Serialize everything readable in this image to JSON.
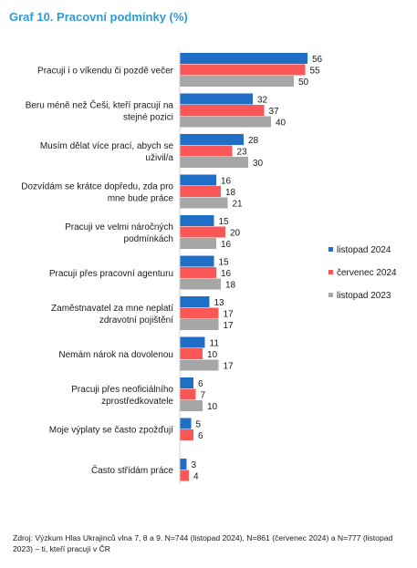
{
  "title": "Graf 10. Pracovní podmínky (%)",
  "source": "Zdroj: Výzkum Hlas Ukrajinců vlna 7, 8 a 9. N=744 (listopad 2024), N=861 (červenec 2024) a N=777 (listopad 2023) – ti, kteří pracují v ČR",
  "colors": {
    "listopad_2024": "#1f6fc6",
    "cervenec_2024": "#fb5757",
    "listopad_2023": "#a6a6a6"
  },
  "chart_data": {
    "type": "bar",
    "orientation": "horizontal",
    "title": "Graf 10. Pracovní podmínky (%)",
    "categories": [
      [
        "Pracuji i o víkendu či pozdě večer"
      ],
      [
        "Beru méně než Češi, kteří pracují na",
        "stejné pozici"
      ],
      [
        "Musím dělat více prací, abych se",
        "uživil/a"
      ],
      [
        "Dozvídám se krátce dopředu, zda pro",
        "mne bude práce"
      ],
      [
        "Pracuji ve velmi náročných",
        "podmínkách"
      ],
      [
        "Pracuji přes pracovní agenturu"
      ],
      [
        "Zaměstnavatel za mne neplatí",
        "zdravotní pojištění"
      ],
      [
        "Nemám nárok na dovolenou"
      ],
      [
        "Pracuji přes neoficiálního",
        "zprostředkovatele"
      ],
      [
        "Moje výplaty se často zpožďují"
      ],
      [
        "Často střídám práce"
      ]
    ],
    "series": [
      {
        "name": "listopad 2024",
        "color": "#1f6fc6",
        "values": [
          56,
          32,
          28,
          16,
          15,
          15,
          13,
          11,
          6,
          5,
          3
        ]
      },
      {
        "name": "červenec 2024",
        "color": "#fb5757",
        "values": [
          55,
          37,
          23,
          18,
          20,
          16,
          17,
          10,
          7,
          6,
          4
        ]
      },
      {
        "name": "listopad 2023",
        "color": "#a6a6a6",
        "values": [
          50,
          40,
          30,
          21,
          16,
          18,
          17,
          17,
          10,
          null,
          null
        ]
      }
    ],
    "legend_position": "right",
    "grid": false
  }
}
